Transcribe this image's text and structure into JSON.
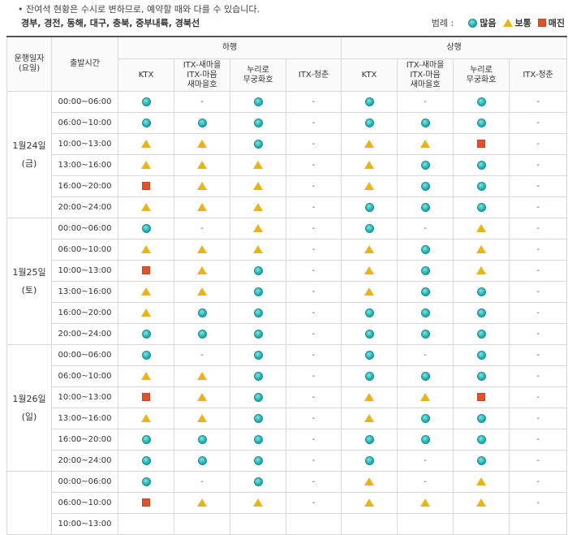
{
  "notice": "잔여석 현황은 수시로 변하므로, 예약할 때와 다를 수 있습니다.",
  "notice_bullet": "•",
  "routes": "경부, 경전, 동해, 대구, 충북, 중부내륙, 경북선",
  "legend": {
    "title": "범례 :",
    "items": [
      {
        "key": "C",
        "icon": "circle-icon",
        "label": "많음",
        "color": "#27b3b1"
      },
      {
        "key": "T",
        "icon": "triangle-icon",
        "label": "보통",
        "color": "#e8b417"
      },
      {
        "key": "S",
        "icon": "square-icon",
        "label": "매진",
        "color": "#e0522c"
      }
    ]
  },
  "table": {
    "header": {
      "date_col": "운행일자\n(요일)",
      "time_col": "출발시간",
      "down": "하행",
      "up": "상행",
      "trains": [
        "KTX",
        "ITX-새마을\nITX-마음\n새마을호",
        "누리로\n무궁화호",
        "ITX-청춘"
      ]
    },
    "dash": "-",
    "groups": [
      {
        "date": "1월24일\n(금)",
        "rows": [
          {
            "time": "00:00~06:00",
            "cells": [
              "C",
              "-",
              "C",
              "-",
              "C",
              "-",
              "C",
              "-"
            ]
          },
          {
            "time": "06:00~10:00",
            "cells": [
              "C",
              "C",
              "C",
              "-",
              "C",
              "C",
              "C",
              "-"
            ]
          },
          {
            "time": "10:00~13:00",
            "cells": [
              "T",
              "T",
              "C",
              "-",
              "T",
              "T",
              "S",
              "-"
            ]
          },
          {
            "time": "13:00~16:00",
            "cells": [
              "T",
              "T",
              "T",
              "-",
              "T",
              "C",
              "C",
              "-"
            ]
          },
          {
            "time": "16:00~20:00",
            "cells": [
              "S",
              "T",
              "T",
              "-",
              "T",
              "C",
              "C",
              "-"
            ]
          },
          {
            "time": "20:00~24:00",
            "cells": [
              "T",
              "T",
              "T",
              "-",
              "C",
              "C",
              "C",
              "-"
            ]
          }
        ]
      },
      {
        "date": "1월25일\n(토)",
        "rows": [
          {
            "time": "00:00~06:00",
            "cells": [
              "C",
              "-",
              "T",
              "-",
              "C",
              "-",
              "T",
              "-"
            ]
          },
          {
            "time": "06:00~10:00",
            "cells": [
              "T",
              "T",
              "T",
              "-",
              "T",
              "C",
              "T",
              "-"
            ]
          },
          {
            "time": "10:00~13:00",
            "cells": [
              "S",
              "T",
              "C",
              "-",
              "T",
              "C",
              "T",
              "-"
            ]
          },
          {
            "time": "13:00~16:00",
            "cells": [
              "T",
              "T",
              "C",
              "-",
              "T",
              "C",
              "C",
              "-"
            ]
          },
          {
            "time": "16:00~20:00",
            "cells": [
              "T",
              "C",
              "C",
              "-",
              "C",
              "C",
              "C",
              "-"
            ]
          },
          {
            "time": "20:00~24:00",
            "cells": [
              "C",
              "C",
              "C",
              "-",
              "C",
              "C",
              "C",
              "-"
            ]
          }
        ]
      },
      {
        "date": "1월26일\n(일)",
        "rows": [
          {
            "time": "00:00~06:00",
            "cells": [
              "C",
              "-",
              "C",
              "-",
              "C",
              "-",
              "C",
              "-"
            ]
          },
          {
            "time": "06:00~10:00",
            "cells": [
              "T",
              "T",
              "C",
              "-",
              "C",
              "C",
              "C",
              "-"
            ]
          },
          {
            "time": "10:00~13:00",
            "cells": [
              "S",
              "T",
              "C",
              "-",
              "T",
              "T",
              "S",
              "-"
            ]
          },
          {
            "time": "13:00~16:00",
            "cells": [
              "T",
              "T",
              "C",
              "-",
              "T",
              "C",
              "C",
              "-"
            ]
          },
          {
            "time": "16:00~20:00",
            "cells": [
              "C",
              "C",
              "C",
              "-",
              "C",
              "C",
              "C",
              "-"
            ]
          },
          {
            "time": "20:00~24:00",
            "cells": [
              "C",
              "C",
              "C",
              "-",
              "C",
              "-",
              "C",
              "-"
            ]
          }
        ]
      },
      {
        "date": "",
        "rows": [
          {
            "time": "00:00~06:00",
            "cells": [
              "C",
              "-",
              "C",
              "-",
              "T",
              "-",
              "T",
              "-"
            ]
          },
          {
            "time": "06:00~10:00",
            "cells": [
              "S",
              "T",
              "T",
              "-",
              "T",
              "T",
              "T",
              "-"
            ]
          },
          {
            "time": "10:00~13:00",
            "cells": [
              "",
              "",
              "",
              "",
              "",
              "",
              "",
              ""
            ]
          }
        ]
      }
    ]
  }
}
